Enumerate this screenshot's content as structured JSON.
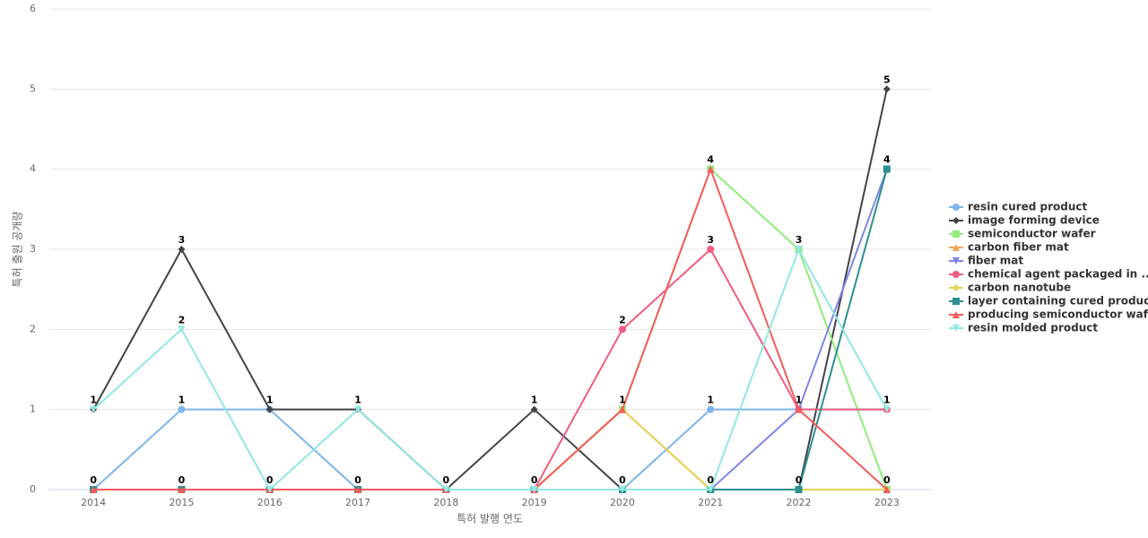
{
  "chart_data": {
    "type": "line",
    "x_label": "특허 발행 연도",
    "y_label": "특허 출원 공개량",
    "categories": [
      "2014",
      "2015",
      "2016",
      "2017",
      "2018",
      "2019",
      "2020",
      "2021",
      "2022",
      "2023"
    ],
    "ylim": [
      0,
      6
    ],
    "yticks": [
      0,
      1,
      2,
      3,
      4,
      5,
      6
    ],
    "grid": true,
    "series": [
      {
        "name": "resin cured product",
        "color": "#7cb5ec",
        "symbol": "circle",
        "values": [
          0,
          1,
          1,
          0,
          0,
          0,
          0,
          1,
          1,
          1
        ]
      },
      {
        "name": "image forming device",
        "color": "#434348",
        "symbol": "diamond",
        "values": [
          1,
          3,
          1,
          1,
          0,
          1,
          0,
          0,
          0,
          5
        ]
      },
      {
        "name": "semiconductor wafer",
        "color": "#90ed7d",
        "symbol": "square",
        "values": [
          0,
          0,
          0,
          0,
          0,
          0,
          1,
          4,
          3,
          0
        ]
      },
      {
        "name": "carbon fiber mat",
        "color": "#f7a35c",
        "symbol": "triangle",
        "values": [
          0,
          0,
          0,
          0,
          0,
          0,
          1,
          0,
          0,
          0
        ]
      },
      {
        "name": "fiber mat",
        "color": "#8085e9",
        "symbol": "triangle-down",
        "values": [
          0,
          0,
          0,
          0,
          0,
          0,
          0,
          0,
          1,
          4
        ]
      },
      {
        "name": "chemical agent packaged in ...",
        "color": "#f15c80",
        "symbol": "circle",
        "values": [
          0,
          0,
          0,
          0,
          0,
          0,
          2,
          3,
          1,
          1
        ]
      },
      {
        "name": "carbon nanotube",
        "color": "#e4d354",
        "symbol": "diamond",
        "values": [
          0,
          0,
          0,
          0,
          0,
          0,
          1,
          0,
          0,
          0
        ]
      },
      {
        "name": "layer containing cured product",
        "color": "#2b908f",
        "symbol": "square",
        "values": [
          0,
          0,
          0,
          0,
          0,
          0,
          0,
          0,
          0,
          4
        ]
      },
      {
        "name": "producing semiconductor wafer",
        "color": "#f45b5b",
        "symbol": "triangle",
        "values": [
          0,
          0,
          0,
          0,
          0,
          0,
          1,
          4,
          1,
          0
        ]
      },
      {
        "name": "resin molded product",
        "color": "#91e8e1",
        "symbol": "triangle-down",
        "values": [
          1,
          2,
          0,
          1,
          0,
          0,
          0,
          0,
          3,
          1
        ]
      }
    ]
  }
}
